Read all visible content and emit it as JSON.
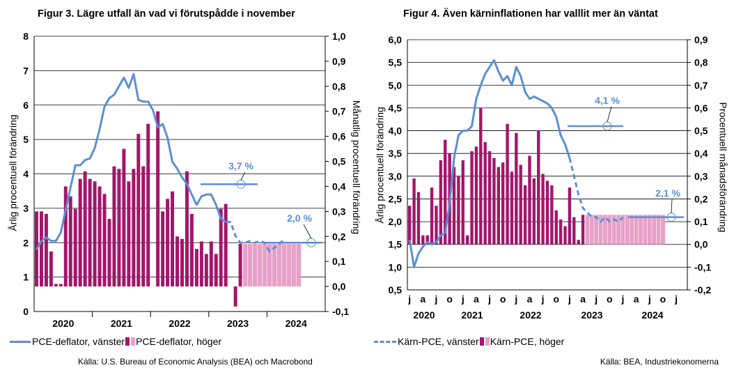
{
  "colors": {
    "line": "#5B8FD0",
    "bar": "#A3166A",
    "bar_forecast": "#E7A1C9",
    "forecast_line": "#5B8FD0"
  },
  "chart_data": [
    {
      "type": "bar",
      "title": "Figur 3. Lägre utfall än vad vi förutspådde i november",
      "ylabel_left": "Årlig procentuell förändring",
      "ylabel_right": "Månatlig procentuell förändring",
      "y_left": {
        "min": 0,
        "max": 8,
        "ticks": [
          "0",
          "1",
          "2",
          "3",
          "4",
          "5",
          "6",
          "7",
          "8"
        ]
      },
      "y_right": {
        "min": -0.1,
        "max": 1.0,
        "ticks": [
          "-0,1",
          "0,0",
          "0,1",
          "0,2",
          "0,3",
          "0,4",
          "0,5",
          "0,6",
          "0,7",
          "0,8",
          "0,9",
          "1,0"
        ]
      },
      "year_labels": [
        "2020",
        "2021",
        "2022",
        "2023",
        "2024"
      ],
      "months_start": "2020-01",
      "monthly_bars_right": [
        0.3,
        0.3,
        0.29,
        0.14,
        0.01,
        0.01,
        0.4,
        0.36,
        0.31,
        0.43,
        0.46,
        0.43,
        0.42,
        0.4,
        0.37,
        0.27,
        0.48,
        0.47,
        0.55,
        0.42,
        0.47,
        0.61,
        0.48,
        0.65,
        0.0,
        0.7,
        0.3,
        0.35,
        0.38,
        0.2,
        0.19,
        0.46,
        0.29,
        0.15,
        0.18,
        0.13,
        0.18,
        0.13,
        0.31,
        0.33,
        0.0,
        -0.08,
        0.17
      ],
      "monthly_bars_forecast_right": [
        0.17,
        0.17,
        0.17,
        0.17,
        0.17,
        0.17,
        0.17,
        0.17,
        0.17,
        0.17,
        0.17,
        0.17
      ],
      "series_annual_left": [
        1.8,
        2.05,
        2.15,
        2.05,
        2.05,
        2.3,
        2.95,
        3.6,
        4.25,
        4.25,
        4.4,
        4.45,
        4.75,
        5.3,
        5.95,
        6.2,
        6.3,
        6.55,
        6.8,
        6.5,
        6.9,
        6.15,
        6.1,
        6.1,
        5.85,
        5.35,
        5.45,
        5.05,
        4.35,
        4.15,
        3.9,
        3.7,
        3.4,
        3.1,
        3.35,
        3.4,
        3.4,
        3.1,
        2.7,
        2.6
      ],
      "series_forecast_left": [
        2.6,
        2.2,
        2.0,
        2.0,
        2.05,
        2.0,
        2.05,
        2.0,
        1.75,
        1.85,
        1.95,
        2.1
      ],
      "annotations": [
        {
          "text": "3,7 %"
        },
        {
          "text": "2,0 %"
        }
      ],
      "source": "Källa: U.S. Bureau of Economic Analysis (BEA) och Macrobond",
      "legend": [
        "PCE-deflator, vänster",
        "PCE-deflator, höger"
      ]
    },
    {
      "type": "bar",
      "title": "Figur 4. Även kärninflationen har valllit mer än väntat",
      "ylabel_left": "Årlig procentuell förändring",
      "ylabel_right": "Procentuell månadsförändring",
      "y_left": {
        "min": 0.5,
        "max": 6.0,
        "ticks": [
          "0,5",
          "1,0",
          "1,5",
          "2,0",
          "2,5",
          "3,0",
          "3,5",
          "4,0",
          "4,5",
          "5,0",
          "5,5",
          "6,0"
        ]
      },
      "y_right": {
        "min": -0.2,
        "max": 0.9,
        "ticks": [
          "-0,2",
          "-0,1",
          "0,0",
          "0,1",
          "0,2",
          "0,3",
          "0,4",
          "0,5",
          "0,6",
          "0,7",
          "0,8",
          "0,9"
        ]
      },
      "month_labels": [
        "j",
        "a",
        "j",
        "o",
        "j",
        "a",
        "j",
        "o",
        "j",
        "a",
        "j",
        "o",
        "j",
        "a",
        "j",
        "o",
        "j",
        "a",
        "j",
        "o",
        "j"
      ],
      "year_labels": [
        "2020",
        "2021",
        "2022",
        "2023",
        "2024"
      ],
      "monthly_bars_right": [
        0.17,
        0.29,
        0.23,
        0.04,
        0.04,
        0.25,
        0.17,
        0.37,
        0.46,
        0.4,
        0.34,
        0.3,
        0.37,
        0.04,
        0.41,
        0.43,
        0.6,
        0.45,
        0.41,
        0.38,
        0.34,
        0.36,
        0.53,
        0.32,
        0.49,
        0.35,
        0.26,
        0.39,
        0.29,
        0.5,
        0.31,
        0.28,
        0.26,
        0.15,
        0.11,
        0.08,
        0.25,
        0.12,
        0.02,
        0.13
      ],
      "monthly_bars_forecast_right": [
        0.13,
        0.13,
        0.13,
        0.13,
        0.13,
        0.13,
        0.13,
        0.13,
        0.13,
        0.13,
        0.13,
        0.13,
        0.13,
        0.13,
        0.13,
        0.13,
        0.13,
        0.13
      ],
      "series_annual_left": [
        1.6,
        1.0,
        1.3,
        1.45,
        1.55,
        1.5,
        1.55,
        1.7,
        1.75,
        2.4,
        3.4,
        3.9,
        4.0,
        4.0,
        4.1,
        4.7,
        5.0,
        5.25,
        5.4,
        5.55,
        5.3,
        5.1,
        5.2,
        5.0,
        5.4,
        5.2,
        4.85,
        4.7,
        4.75,
        4.7,
        4.65,
        4.6,
        4.5,
        4.3,
        3.9,
        3.7,
        3.4
      ],
      "series_forecast_left": [
        3.0,
        2.6,
        2.3,
        2.2,
        2.1,
        2.1,
        2.0,
        2.1,
        2.0,
        2.05,
        2.0,
        2.1
      ],
      "annotations": [
        {
          "text": "4,1 %"
        },
        {
          "text": "2,1 %"
        }
      ],
      "source": "Källa: BEA, Industriekonomerna",
      "legend": [
        "Kärn-PCE, vänster",
        "Kärn-PCE, höger"
      ]
    }
  ]
}
